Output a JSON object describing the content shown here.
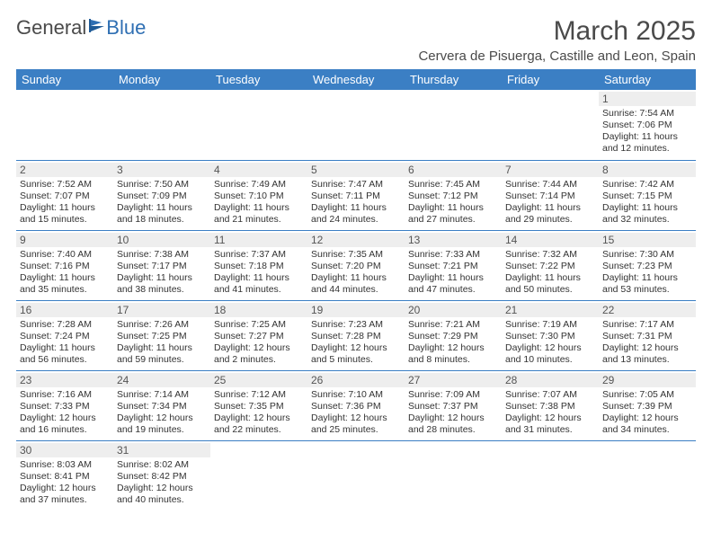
{
  "logo": {
    "text1": "General",
    "text2": "Blue",
    "accent_color": "#2f6fb3"
  },
  "header": {
    "month_title": "March 2025",
    "location": "Cervera de Pisuerga, Castille and Leon, Spain"
  },
  "colors": {
    "header_bg": "#3b7fc4",
    "header_text": "#ffffff",
    "rule": "#3b7fc4",
    "daynum_bg": "#eeeeee",
    "text": "#333333"
  },
  "day_headers": [
    "Sunday",
    "Monday",
    "Tuesday",
    "Wednesday",
    "Thursday",
    "Friday",
    "Saturday"
  ],
  "weeks": [
    [
      null,
      null,
      null,
      null,
      null,
      null,
      {
        "n": "1",
        "sr": "Sunrise: 7:54 AM",
        "ss": "Sunset: 7:06 PM",
        "dl": "Daylight: 11 hours and 12 minutes."
      }
    ],
    [
      {
        "n": "2",
        "sr": "Sunrise: 7:52 AM",
        "ss": "Sunset: 7:07 PM",
        "dl": "Daylight: 11 hours and 15 minutes."
      },
      {
        "n": "3",
        "sr": "Sunrise: 7:50 AM",
        "ss": "Sunset: 7:09 PM",
        "dl": "Daylight: 11 hours and 18 minutes."
      },
      {
        "n": "4",
        "sr": "Sunrise: 7:49 AM",
        "ss": "Sunset: 7:10 PM",
        "dl": "Daylight: 11 hours and 21 minutes."
      },
      {
        "n": "5",
        "sr": "Sunrise: 7:47 AM",
        "ss": "Sunset: 7:11 PM",
        "dl": "Daylight: 11 hours and 24 minutes."
      },
      {
        "n": "6",
        "sr": "Sunrise: 7:45 AM",
        "ss": "Sunset: 7:12 PM",
        "dl": "Daylight: 11 hours and 27 minutes."
      },
      {
        "n": "7",
        "sr": "Sunrise: 7:44 AM",
        "ss": "Sunset: 7:14 PM",
        "dl": "Daylight: 11 hours and 29 minutes."
      },
      {
        "n": "8",
        "sr": "Sunrise: 7:42 AM",
        "ss": "Sunset: 7:15 PM",
        "dl": "Daylight: 11 hours and 32 minutes."
      }
    ],
    [
      {
        "n": "9",
        "sr": "Sunrise: 7:40 AM",
        "ss": "Sunset: 7:16 PM",
        "dl": "Daylight: 11 hours and 35 minutes."
      },
      {
        "n": "10",
        "sr": "Sunrise: 7:38 AM",
        "ss": "Sunset: 7:17 PM",
        "dl": "Daylight: 11 hours and 38 minutes."
      },
      {
        "n": "11",
        "sr": "Sunrise: 7:37 AM",
        "ss": "Sunset: 7:18 PM",
        "dl": "Daylight: 11 hours and 41 minutes."
      },
      {
        "n": "12",
        "sr": "Sunrise: 7:35 AM",
        "ss": "Sunset: 7:20 PM",
        "dl": "Daylight: 11 hours and 44 minutes."
      },
      {
        "n": "13",
        "sr": "Sunrise: 7:33 AM",
        "ss": "Sunset: 7:21 PM",
        "dl": "Daylight: 11 hours and 47 minutes."
      },
      {
        "n": "14",
        "sr": "Sunrise: 7:32 AM",
        "ss": "Sunset: 7:22 PM",
        "dl": "Daylight: 11 hours and 50 minutes."
      },
      {
        "n": "15",
        "sr": "Sunrise: 7:30 AM",
        "ss": "Sunset: 7:23 PM",
        "dl": "Daylight: 11 hours and 53 minutes."
      }
    ],
    [
      {
        "n": "16",
        "sr": "Sunrise: 7:28 AM",
        "ss": "Sunset: 7:24 PM",
        "dl": "Daylight: 11 hours and 56 minutes."
      },
      {
        "n": "17",
        "sr": "Sunrise: 7:26 AM",
        "ss": "Sunset: 7:25 PM",
        "dl": "Daylight: 11 hours and 59 minutes."
      },
      {
        "n": "18",
        "sr": "Sunrise: 7:25 AM",
        "ss": "Sunset: 7:27 PM",
        "dl": "Daylight: 12 hours and 2 minutes."
      },
      {
        "n": "19",
        "sr": "Sunrise: 7:23 AM",
        "ss": "Sunset: 7:28 PM",
        "dl": "Daylight: 12 hours and 5 minutes."
      },
      {
        "n": "20",
        "sr": "Sunrise: 7:21 AM",
        "ss": "Sunset: 7:29 PM",
        "dl": "Daylight: 12 hours and 8 minutes."
      },
      {
        "n": "21",
        "sr": "Sunrise: 7:19 AM",
        "ss": "Sunset: 7:30 PM",
        "dl": "Daylight: 12 hours and 10 minutes."
      },
      {
        "n": "22",
        "sr": "Sunrise: 7:17 AM",
        "ss": "Sunset: 7:31 PM",
        "dl": "Daylight: 12 hours and 13 minutes."
      }
    ],
    [
      {
        "n": "23",
        "sr": "Sunrise: 7:16 AM",
        "ss": "Sunset: 7:33 PM",
        "dl": "Daylight: 12 hours and 16 minutes."
      },
      {
        "n": "24",
        "sr": "Sunrise: 7:14 AM",
        "ss": "Sunset: 7:34 PM",
        "dl": "Daylight: 12 hours and 19 minutes."
      },
      {
        "n": "25",
        "sr": "Sunrise: 7:12 AM",
        "ss": "Sunset: 7:35 PM",
        "dl": "Daylight: 12 hours and 22 minutes."
      },
      {
        "n": "26",
        "sr": "Sunrise: 7:10 AM",
        "ss": "Sunset: 7:36 PM",
        "dl": "Daylight: 12 hours and 25 minutes."
      },
      {
        "n": "27",
        "sr": "Sunrise: 7:09 AM",
        "ss": "Sunset: 7:37 PM",
        "dl": "Daylight: 12 hours and 28 minutes."
      },
      {
        "n": "28",
        "sr": "Sunrise: 7:07 AM",
        "ss": "Sunset: 7:38 PM",
        "dl": "Daylight: 12 hours and 31 minutes."
      },
      {
        "n": "29",
        "sr": "Sunrise: 7:05 AM",
        "ss": "Sunset: 7:39 PM",
        "dl": "Daylight: 12 hours and 34 minutes."
      }
    ],
    [
      {
        "n": "30",
        "sr": "Sunrise: 8:03 AM",
        "ss": "Sunset: 8:41 PM",
        "dl": "Daylight: 12 hours and 37 minutes."
      },
      {
        "n": "31",
        "sr": "Sunrise: 8:02 AM",
        "ss": "Sunset: 8:42 PM",
        "dl": "Daylight: 12 hours and 40 minutes."
      },
      null,
      null,
      null,
      null,
      null
    ]
  ]
}
